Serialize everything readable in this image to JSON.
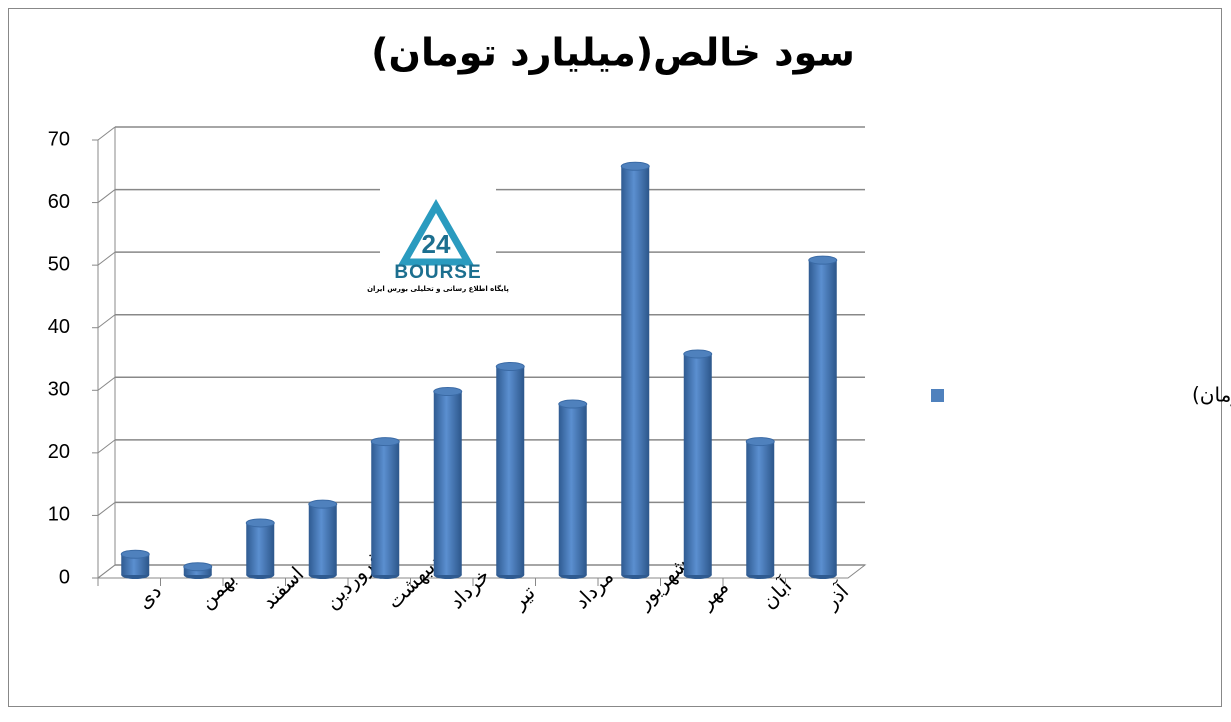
{
  "chart_data": {
    "type": "bar",
    "title": "سود خالص(میلیارد تومان)",
    "categories": [
      "دی",
      "بهمن",
      "اسفند",
      "فروردین",
      "اردیبهشت",
      "خرداد",
      "تیر",
      "مرداد",
      "شهریور",
      "مهر",
      "آبان",
      "آذر"
    ],
    "series": [
      {
        "name": "سود خالص(میلیارد تومان)",
        "color": "#4f81bd",
        "values": [
          3,
          1,
          8,
          11,
          21,
          29,
          33,
          27,
          65,
          35,
          21,
          50
        ]
      }
    ],
    "ylim": [
      0,
      70
    ],
    "yticks": [
      0,
      10,
      20,
      30,
      40,
      50,
      60,
      70
    ],
    "grid": true,
    "legend": "right"
  },
  "logo": {
    "number": "24",
    "name": "BOURSE",
    "tagline": "پایگاه اطلاع رسانی و تحلیلی بورس ایران"
  }
}
